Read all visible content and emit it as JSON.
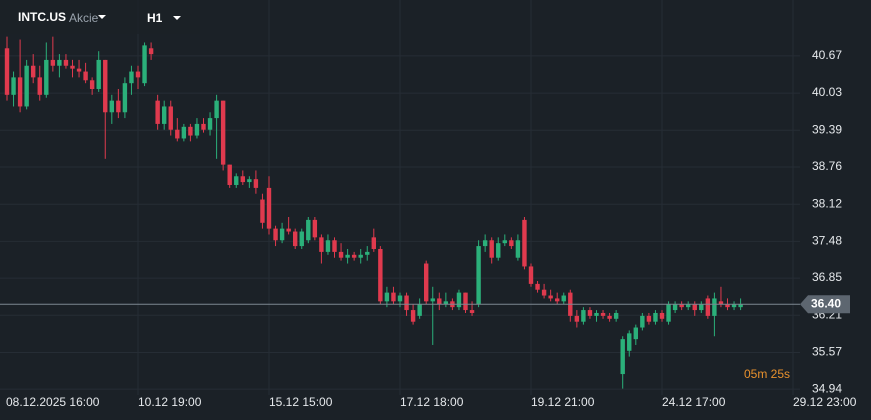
{
  "chart_data": {
    "type": "candlestick",
    "symbol": "INTC.US",
    "asset_class": "Akcie",
    "timeframe": "H1",
    "categories": [
      "08.12.2025 16:00",
      null,
      null,
      null,
      null,
      null,
      null,
      null,
      null,
      null,
      null,
      null,
      null,
      null,
      null,
      null,
      null,
      null,
      null,
      null,
      "10.12 19:00",
      null,
      null,
      null,
      null,
      null,
      null,
      null,
      null,
      null,
      null,
      null,
      null,
      null,
      null,
      null,
      null,
      null,
      null,
      null,
      "15.12 15:00",
      null,
      null,
      null,
      null,
      null,
      null,
      null,
      null,
      null,
      null,
      null,
      null,
      null,
      null,
      null,
      null,
      null,
      null,
      null,
      "17.12 18:00",
      null,
      null,
      null,
      null,
      null,
      null,
      null,
      null,
      null,
      null,
      null,
      null,
      null,
      null,
      null,
      null,
      null,
      null,
      null,
      "19.12 21:00",
      null,
      null,
      null,
      null,
      null,
      null,
      null,
      null,
      null,
      null,
      null,
      null,
      null,
      null,
      null,
      null,
      null,
      null,
      null,
      "24.12 17:00",
      null,
      null,
      null,
      null,
      null,
      null,
      null,
      null,
      null,
      null,
      null,
      null,
      null,
      null,
      null,
      null,
      null,
      null,
      null,
      "29.12 23:00"
    ],
    "open": [
      40.8,
      40.0,
      40.3,
      39.8,
      40.5,
      40.3,
      40.0,
      40.6,
      40.5,
      40.6,
      40.5,
      40.45,
      40.4,
      40.25,
      40.1,
      40.6,
      39.7,
      39.9,
      39.7,
      40.2,
      40.4,
      40.2,
      40.8,
      39.9,
      39.5,
      39.8,
      39.4,
      39.25,
      39.45,
      39.3,
      39.5,
      39.4,
      39.6,
      39.9,
      38.8,
      38.45,
      38.6,
      38.5,
      38.55,
      38.2,
      38.4,
      37.7,
      37.5,
      37.7,
      37.65,
      37.4,
      37.5,
      37.85,
      37.55,
      37.3,
      37.5,
      37.3,
      37.2,
      37.25,
      37.2,
      37.25,
      37.55,
      37.35,
      36.45,
      36.6,
      36.45,
      36.55,
      36.3,
      36.2,
      37.1,
      36.45,
      36.5,
      36.4,
      36.45,
      36.35,
      36.6,
      36.3,
      36.4,
      37.4,
      37.5,
      37.2,
      37.45,
      37.5,
      37.2,
      37.85,
      37.05,
      36.75,
      36.65,
      36.55,
      36.5,
      36.45,
      36.6,
      36.2,
      36.1,
      36.3,
      36.2,
      36.25,
      36.2,
      36.15,
      35.2,
      35.6,
      35.8,
      36.0,
      36.2,
      36.1,
      36.25,
      36.1,
      36.3,
      36.4,
      36.35,
      36.4,
      36.3,
      36.5,
      36.2,
      36.45,
      36.4,
      36.35,
      36.35,
      null,
      null,
      null,
      null,
      null,
      null,
      null,
      null
    ],
    "high": [
      41.0,
      40.4,
      40.95,
      40.6,
      40.7,
      40.5,
      40.9,
      41.0,
      40.7,
      40.7,
      40.6,
      40.6,
      40.55,
      40.3,
      40.75,
      40.6,
      40.0,
      40.1,
      40.3,
      40.5,
      40.5,
      40.9,
      40.9,
      40.0,
      39.9,
      39.9,
      39.6,
      39.5,
      39.5,
      39.6,
      39.6,
      39.7,
      40.0,
      39.9,
      38.8,
      38.65,
      38.7,
      38.6,
      38.7,
      38.3,
      38.6,
      37.75,
      37.8,
      37.9,
      37.7,
      37.7,
      37.9,
      37.9,
      37.6,
      37.6,
      37.55,
      37.45,
      37.35,
      37.3,
      37.35,
      37.4,
      37.7,
      37.4,
      36.7,
      36.7,
      36.6,
      36.6,
      36.4,
      36.5,
      37.15,
      36.7,
      36.6,
      36.6,
      36.5,
      36.65,
      36.6,
      36.45,
      37.5,
      37.6,
      37.55,
      37.55,
      37.6,
      37.55,
      37.6,
      37.9,
      37.1,
      36.8,
      36.75,
      36.65,
      36.6,
      36.6,
      36.65,
      36.3,
      36.35,
      36.35,
      36.3,
      36.3,
      36.25,
      36.3,
      35.85,
      35.95,
      36.05,
      36.25,
      36.25,
      36.3,
      36.3,
      36.45,
      36.45,
      36.45,
      36.45,
      36.45,
      36.45,
      36.55,
      36.6,
      36.7,
      36.5,
      36.45,
      36.5,
      null,
      null,
      null,
      null,
      null,
      null,
      null,
      null
    ],
    "low": [
      39.9,
      39.8,
      39.7,
      39.75,
      40.2,
      39.9,
      39.95,
      40.4,
      40.3,
      40.45,
      40.3,
      40.3,
      40.2,
      40.0,
      40.05,
      38.9,
      39.5,
      39.6,
      39.6,
      40.0,
      40.1,
      40.15,
      40.6,
      39.4,
      39.4,
      39.3,
      39.2,
      39.2,
      39.2,
      39.25,
      39.35,
      39.3,
      38.9,
      38.7,
      38.4,
      38.4,
      38.45,
      38.4,
      38.3,
      37.7,
      37.6,
      37.4,
      37.45,
      37.6,
      37.35,
      37.35,
      37.45,
      37.5,
      37.1,
      37.25,
      37.2,
      37.15,
      37.1,
      37.15,
      37.1,
      37.15,
      37.3,
      36.4,
      36.35,
      36.4,
      36.35,
      36.2,
      36.05,
      36.15,
      36.4,
      35.7,
      36.3,
      36.35,
      36.3,
      36.3,
      36.25,
      36.2,
      36.35,
      37.3,
      37.1,
      37.15,
      37.4,
      37.35,
      37.15,
      37.0,
      36.7,
      36.6,
      36.5,
      36.45,
      36.4,
      36.4,
      36.1,
      36.0,
      36.05,
      36.15,
      36.1,
      36.15,
      36.1,
      36.1,
      34.95,
      35.5,
      35.7,
      35.95,
      36.05,
      36.05,
      36.1,
      36.05,
      36.25,
      36.3,
      36.3,
      36.2,
      36.25,
      36.15,
      35.85,
      36.35,
      36.3,
      36.3,
      36.3,
      null,
      null,
      null,
      null,
      null,
      null,
      null,
      null
    ],
    "close": [
      40.0,
      40.3,
      39.8,
      40.5,
      40.3,
      40.0,
      40.6,
      40.5,
      40.6,
      40.5,
      40.45,
      40.4,
      40.25,
      40.1,
      40.6,
      39.7,
      39.9,
      39.7,
      40.2,
      40.4,
      40.3,
      40.85,
      40.7,
      39.5,
      39.8,
      39.4,
      39.25,
      39.45,
      39.3,
      39.5,
      39.4,
      39.6,
      39.9,
      38.8,
      38.45,
      38.6,
      38.5,
      38.55,
      38.4,
      37.8,
      37.7,
      37.5,
      37.7,
      37.65,
      37.4,
      37.65,
      37.85,
      37.55,
      37.3,
      37.5,
      37.3,
      37.2,
      37.25,
      37.2,
      37.25,
      37.3,
      37.35,
      36.45,
      36.6,
      36.45,
      36.55,
      36.3,
      36.1,
      36.4,
      36.45,
      36.5,
      36.4,
      36.45,
      36.35,
      36.6,
      36.3,
      36.25,
      37.4,
      37.5,
      37.2,
      37.45,
      37.5,
      37.4,
      37.5,
      37.05,
      36.75,
      36.65,
      36.55,
      36.5,
      36.45,
      36.55,
      36.2,
      36.1,
      36.3,
      36.2,
      36.25,
      36.2,
      36.15,
      36.25,
      35.8,
      35.9,
      36.0,
      36.2,
      36.1,
      36.25,
      36.15,
      36.4,
      36.4,
      36.35,
      36.4,
      36.3,
      36.4,
      36.2,
      36.5,
      36.4,
      36.35,
      36.4,
      36.4,
      null,
      null,
      null,
      null,
      null,
      null,
      null,
      null
    ],
    "up_color": "#2bb07a",
    "down_color": "#e03a4e",
    "ylim": [
      34.84,
      41.63
    ],
    "yticks": [
      34.94,
      35.57,
      36.21,
      36.85,
      37.48,
      38.12,
      38.76,
      39.39,
      40.03,
      40.67
    ],
    "grid": true,
    "last_price": {
      "value": 36.4,
      "label": "36.40"
    },
    "countdown": "05m 25s"
  }
}
